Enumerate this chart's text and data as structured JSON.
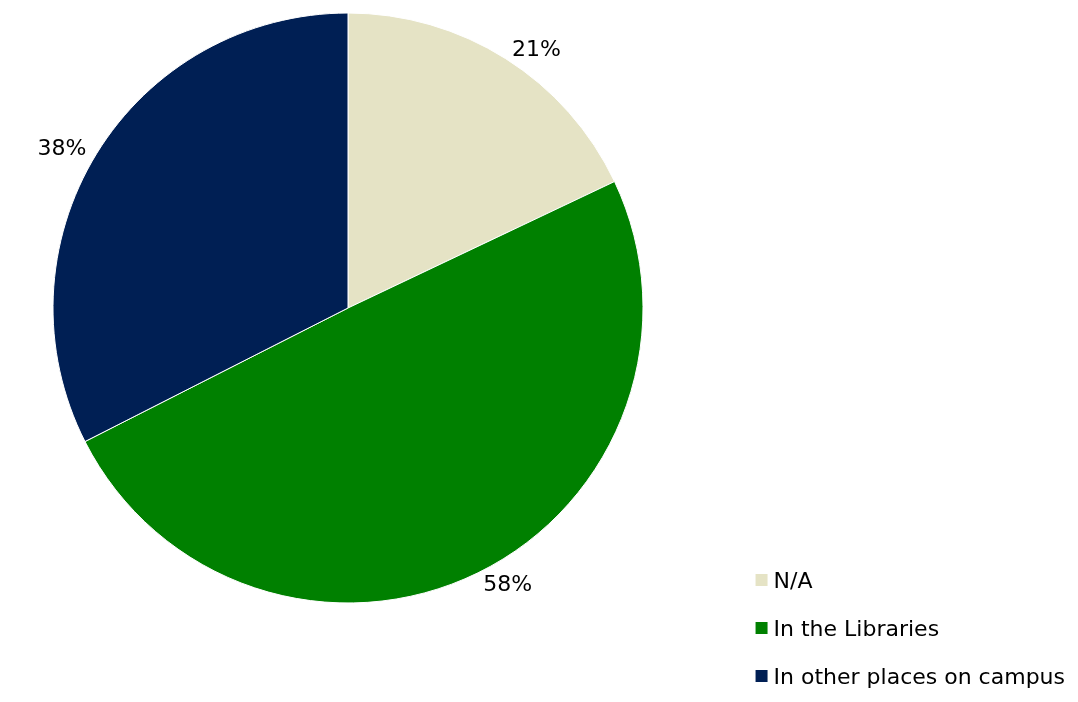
{
  "chart_data": {
    "type": "pie",
    "categories": [
      "N/A",
      "In the Libraries",
      "In other places on campus"
    ],
    "values": [
      21,
      58,
      38
    ],
    "value_labels": [
      "21%",
      "58%",
      "38%"
    ],
    "colors": [
      "#e5e3c5",
      "#008000",
      "#001f54"
    ],
    "legend": "bottom right"
  }
}
